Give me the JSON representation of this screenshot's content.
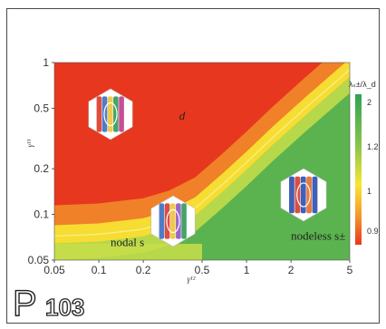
{
  "chart_data": {
    "type": "heatmap",
    "x_scale": "log",
    "y_scale": "log",
    "xlim": [
      0.05,
      5
    ],
    "ylim": [
      0.05,
      1
    ],
    "x_ticks": [
      "0.05",
      "0.1",
      "0.2",
      "0.5",
      "1",
      "2",
      "5"
    ],
    "x_tick_values": [
      0.05,
      0.1,
      0.2,
      0.5,
      1,
      2,
      5
    ],
    "y_ticks": [
      "1",
      "0.5",
      "0.2",
      "0.1",
      "0.05"
    ],
    "y_tick_values": [
      1,
      0.5,
      0.2,
      0.1,
      0.05
    ],
    "xlabel": "γ¹²",
    "ylabel": "γ¹¹",
    "colorbar": {
      "label": "λₛ±/λ_d",
      "ticks": [
        "2",
        "1.2",
        "1",
        "0.9"
      ],
      "tick_values": [
        2,
        1.2,
        1,
        0.9
      ],
      "colors": [
        "#2fa255",
        "#8cc54a",
        "#f7e733",
        "#f39b2c",
        "#e8371f"
      ]
    },
    "regions": [
      {
        "label": "d",
        "x": 0.35,
        "y": 0.42
      },
      {
        "label": "nodal s",
        "x": 0.12,
        "y": 0.062
      },
      {
        "label": "nodeless s±",
        "x": 2.0,
        "y": 0.068
      }
    ],
    "boundary": {
      "name": "phase-boundary",
      "x": [
        0.05,
        0.1,
        0.2,
        0.3,
        0.45,
        0.7,
        1.0,
        1.5,
        2.5,
        5.0
      ],
      "y": [
        0.072,
        0.074,
        0.08,
        0.09,
        0.11,
        0.16,
        0.22,
        0.32,
        0.5,
        0.9
      ]
    }
  },
  "page": {
    "label": "P",
    "number": "103"
  },
  "colors": {
    "red": "#e8371f",
    "orange": "#f39b2c",
    "yellow": "#f7e733",
    "green": "#2fa255",
    "frame": "#4a4a4a"
  },
  "icons": [
    "gap-structure-d-icon",
    "gap-structure-nodal-s-icon",
    "gap-structure-nodeless-s-icon"
  ]
}
